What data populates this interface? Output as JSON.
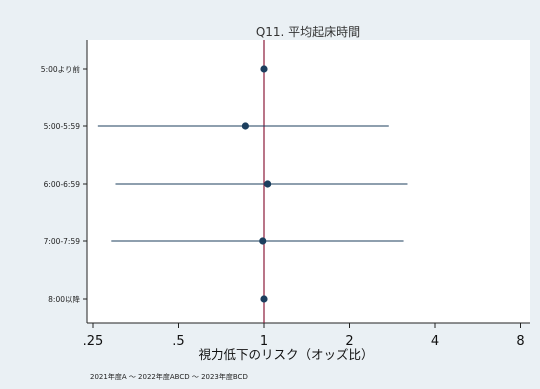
{
  "chart_data": {
    "type": "forest",
    "title": "Q11. 平均起床時間",
    "xlabel": "視力低下のリスク（オッズ比）",
    "note": "2021年度A ～ 2022年度ABCD ～ 2023年度BCD",
    "x_scale": "log",
    "x_ticks": [
      0.25,
      0.5,
      1,
      2,
      4,
      8
    ],
    "x_tick_labels": [
      ".25",
      ".5",
      "1",
      "2",
      "4",
      "8"
    ],
    "xlim": [
      0.25,
      8
    ],
    "reference_line": 1,
    "categories": [
      "5:00より前",
      "5:00-5:59",
      "6:00-6:59",
      "7:00-7:59",
      "8:00以降"
    ],
    "estimates": [
      1.0,
      0.86,
      1.03,
      0.99,
      1.0
    ],
    "ci_lower": [
      null,
      0.26,
      0.3,
      0.29,
      null
    ],
    "ci_upper": [
      null,
      2.75,
      3.2,
      3.1,
      null
    ],
    "colors": {
      "background": "#eaf0f4",
      "plot_background": "#ffffff",
      "series": "#1c3f5e",
      "reference": "#8b1a3a"
    }
  }
}
